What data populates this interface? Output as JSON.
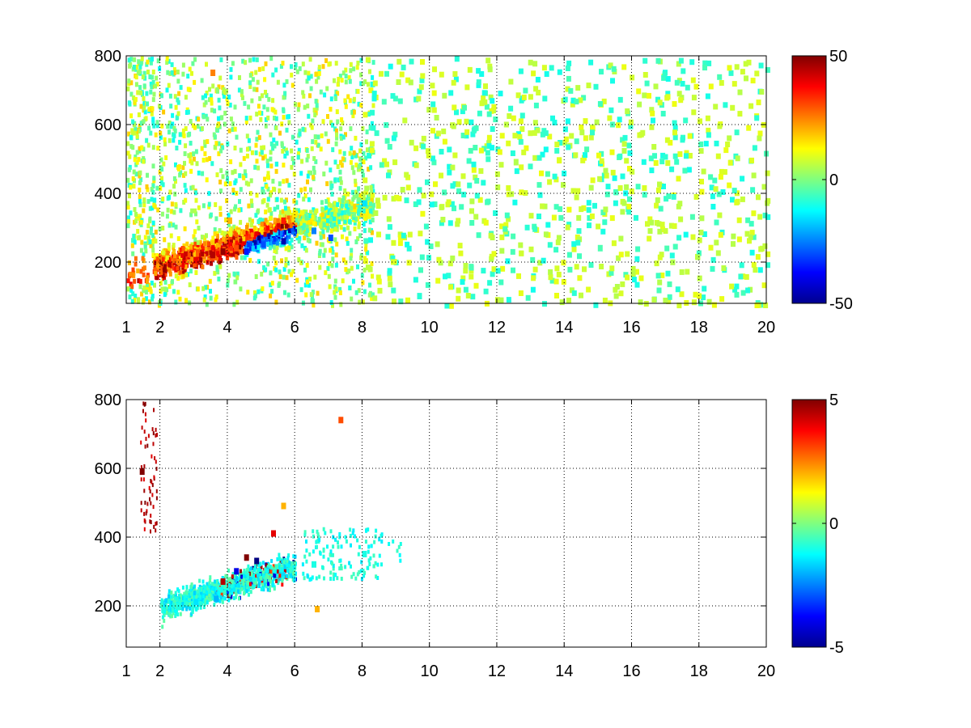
{
  "chart_data": [
    {
      "type": "heatmap",
      "title": "",
      "xlabel": "",
      "ylabel": "",
      "xlim": [
        1,
        20
      ],
      "ylim": [
        80,
        800
      ],
      "xticks": [
        1,
        2,
        4,
        6,
        8,
        10,
        12,
        14,
        16,
        18,
        20
      ],
      "yticks": [
        200,
        400,
        600,
        800
      ],
      "grid": true,
      "colormap": "jet",
      "colorbar": {
        "min": -50,
        "max": 50,
        "ticks": [
          50,
          0,
          -50
        ]
      },
      "missing_value_color": "#ffffff",
      "approximate_cells": [
        {
          "x": 2.5,
          "y": 210,
          "value": 25
        },
        {
          "x": 3.0,
          "y": 215,
          "value": 40
        },
        {
          "x": 3.5,
          "y": 230,
          "value": 45
        },
        {
          "x": 3.8,
          "y": 240,
          "value": 48
        },
        {
          "x": 4.2,
          "y": 250,
          "value": 30
        },
        {
          "x": 4.5,
          "y": 240,
          "value": -35
        },
        {
          "x": 5.0,
          "y": 260,
          "value": -30
        },
        {
          "x": 5.6,
          "y": 270,
          "value": -45
        },
        {
          "x": 5.6,
          "y": 330,
          "value": 35
        },
        {
          "x": 4.0,
          "y": 330,
          "value": 20
        },
        {
          "x": 6.5,
          "y": 300,
          "value": -25
        },
        {
          "x": 7.0,
          "y": 280,
          "value": -30
        },
        {
          "x": 8.0,
          "y": 380,
          "value": -15
        },
        {
          "x": 3.5,
          "y": 760,
          "value": 25
        },
        {
          "x": 12.5,
          "y": 500,
          "value": 5
        },
        {
          "x": 15.0,
          "y": 250,
          "value": -5
        }
      ]
    },
    {
      "type": "heatmap",
      "title": "",
      "xlabel": "",
      "ylabel": "",
      "xlim": [
        1,
        20
      ],
      "ylim": [
        80,
        800
      ],
      "xticks": [
        1,
        2,
        4,
        6,
        8,
        10,
        12,
        14,
        16,
        18,
        20
      ],
      "yticks": [
        200,
        400,
        600,
        800
      ],
      "grid": true,
      "colormap": "jet",
      "colorbar": {
        "min": -5,
        "max": 5,
        "ticks": [
          5,
          0,
          -5
        ]
      },
      "missing_value_color": "#ffffff",
      "approximate_cells": [
        {
          "x": 2.5,
          "y": 210,
          "value": -1
        },
        {
          "x": 3.0,
          "y": 220,
          "value": -1.5
        },
        {
          "x": 3.6,
          "y": 230,
          "value": -2
        },
        {
          "x": 3.8,
          "y": 280,
          "value": 4.5
        },
        {
          "x": 4.2,
          "y": 310,
          "value": -4
        },
        {
          "x": 4.5,
          "y": 350,
          "value": 5
        },
        {
          "x": 4.8,
          "y": 340,
          "value": -5
        },
        {
          "x": 5.3,
          "y": 420,
          "value": 4
        },
        {
          "x": 5.6,
          "y": 500,
          "value": 2
        },
        {
          "x": 6.5,
          "y": 330,
          "value": -1
        },
        {
          "x": 7.3,
          "y": 750,
          "value": 3
        },
        {
          "x": 1.4,
          "y": 600,
          "value": 5
        },
        {
          "x": 8.0,
          "y": 360,
          "value": -1
        },
        {
          "x": 6.6,
          "y": 200,
          "value": 2
        }
      ]
    }
  ]
}
